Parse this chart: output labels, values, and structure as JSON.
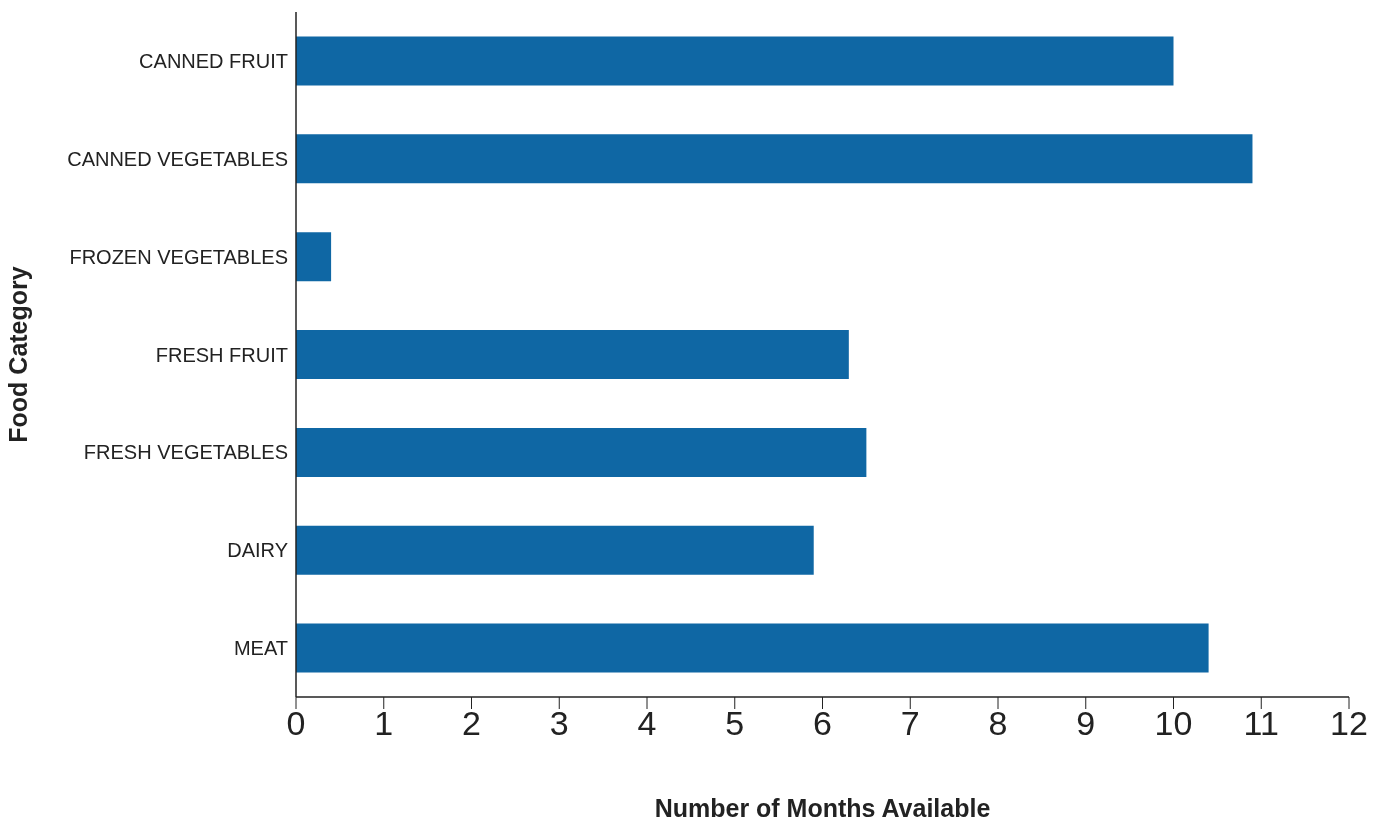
{
  "chart_data": {
    "type": "bar",
    "orientation": "horizontal",
    "xlabel": "Number of Months Available",
    "ylabel": "Food Category",
    "categories": [
      "CANNED FRUIT",
      "CANNED VEGETABLES",
      "FROZEN VEGETABLES",
      "FRESH FRUIT",
      "FRESH VEGETABLES",
      "DAIRY",
      "MEAT"
    ],
    "values": [
      10,
      10.9,
      0.4,
      6.3,
      6.5,
      5.9,
      10.4
    ],
    "color": "#0f67a4",
    "xlim": [
      0,
      12
    ],
    "xticks": [
      0,
      1,
      2,
      3,
      4,
      5,
      6,
      7,
      8,
      9,
      10,
      11,
      12
    ],
    "grid": false,
    "legend": false
  }
}
